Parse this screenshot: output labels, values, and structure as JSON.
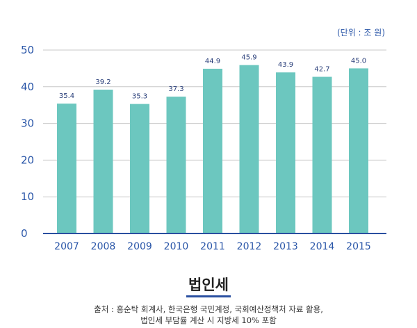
{
  "chart_data": {
    "type": "bar",
    "categories": [
      "2007",
      "2008",
      "2009",
      "2010",
      "2011",
      "2012",
      "2013",
      "2014",
      "2015"
    ],
    "values": [
      35.4,
      39.2,
      35.3,
      37.3,
      44.9,
      45.9,
      43.9,
      42.7,
      45.0
    ],
    "data_labels": [
      "35.4",
      "39.2",
      "35.3",
      "37.3",
      "44.9",
      "45.9",
      "43.9",
      "42.7",
      "45.0"
    ],
    "ylim": [
      0,
      50
    ],
    "yticks": [
      0,
      10,
      20,
      30,
      40,
      50
    ],
    "unit": "(단위 : 조 원)",
    "grid": true,
    "bar_color": "#6cc7bf",
    "axis_color": "#2a4fa0",
    "label_color": "#2a56a8"
  },
  "title": "법인세",
  "source_line1": "출처 : 홍순탁 회계사, 한국은행 국민계정, 국회예산정책처 자료 활용,",
  "source_line2": "법인세 부담률 계산 시 지방세 10% 포함"
}
